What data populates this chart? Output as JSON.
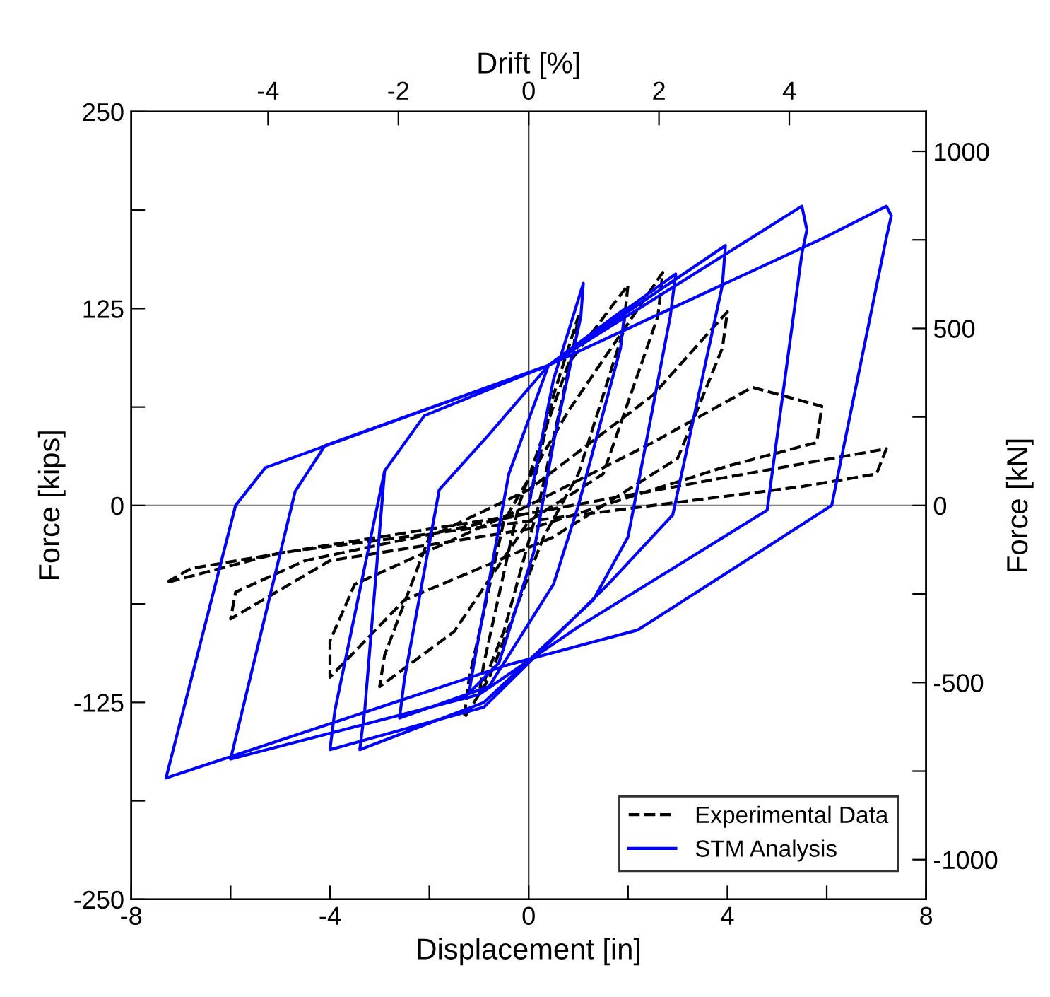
{
  "chart_data": {
    "type": "line",
    "xlabel": "Displacement [in]",
    "ylabel": "Force [kips]",
    "y2label": "Force [kN]",
    "x2label": "Drift [%]",
    "xlim": [
      -8,
      8
    ],
    "xticks": [
      -8,
      {
        "value": -6,
        "label": null
      },
      -4,
      {
        "value": -2,
        "label": null
      },
      0,
      {
        "value": 2,
        "label": null
      },
      4,
      {
        "value": 6,
        "label": null
      },
      8
    ],
    "ylim": [
      -250,
      250
    ],
    "yticks": [
      -250,
      {
        "value": -187.5,
        "label": null
      },
      -125,
      {
        "value": -62.5,
        "label": null
      },
      0,
      {
        "value": 62.5,
        "label": null
      },
      125,
      {
        "value": 187.5,
        "label": null
      },
      250
    ],
    "y2lim": [
      -1112,
      1112
    ],
    "y2ticks": [
      -1000,
      {
        "value": -750,
        "label": null
      },
      -500,
      {
        "value": -250,
        "label": null
      },
      0,
      {
        "value": 250,
        "label": null
      },
      500,
      {
        "value": 750,
        "label": null
      },
      1000
    ],
    "x2lim": [
      -6.1,
      6.1
    ],
    "x2ticks": [
      -4,
      -2,
      0,
      2,
      4
    ],
    "grid": false,
    "legend": "bottom right",
    "ref_lines": [
      {
        "axis": "x",
        "value": 0,
        "label": null,
        "color": "#333333"
      },
      {
        "axis": "y",
        "value": 0,
        "label": null,
        "color": "#808080"
      }
    ],
    "series": [
      {
        "name": "Experimental Data",
        "color": "#000000",
        "line_style": "dashed",
        "x": [
          0,
          0.5,
          1.0,
          0.9,
          0.2,
          -0.5,
          -1.0,
          -0.9,
          -0.2,
          0.8,
          2.0,
          1.9,
          1.0,
          0.3,
          -0.8,
          -1.3,
          -1.2,
          -0.5,
          0.8,
          2.7,
          2.6,
          1.5,
          0,
          -1.5,
          -3.0,
          -2.9,
          -2.0,
          0,
          2.5,
          4.0,
          3.9,
          3.0,
          0.5,
          -2.5,
          -4.0,
          -4.0,
          -3.5,
          0,
          2.5,
          4.5,
          5.9,
          5.8,
          4.0,
          0,
          -4,
          -6,
          -5.9,
          -4.5,
          0,
          4,
          7.2,
          7.0,
          5.5,
          0,
          -5,
          -7.3,
          -6.8,
          -4,
          0
        ],
        "values": [
          0,
          70,
          120,
          100,
          0,
          -80,
          -120,
          -100,
          0,
          90,
          140,
          110,
          20,
          -20,
          -110,
          -135,
          -110,
          -10,
          60,
          148,
          120,
          20,
          -10,
          -80,
          -115,
          -95,
          -20,
          10,
          70,
          123,
          100,
          30,
          -20,
          -60,
          -109,
          -86,
          -50,
          0,
          40,
          75,
          63,
          40,
          25,
          -15,
          -35,
          -72,
          -55,
          -35,
          -5,
          18,
          36,
          20,
          12,
          -10,
          -30,
          -49,
          -40,
          -25,
          -5
        ]
      },
      {
        "name": "STM Analysis",
        "color": "#0000ff",
        "line_style": "solid",
        "x": [
          0,
          0.5,
          1.1,
          1.05,
          0.5,
          0.1,
          -0.6,
          -1.2,
          -1.1,
          -0.4,
          0.4,
          1.94,
          1.85,
          1.0,
          0.5,
          -0.8,
          -2.6,
          -2.5,
          -1.8,
          -0.8,
          0.4,
          2.96,
          2.85,
          2.0,
          1.3,
          -0.9,
          -3.4,
          -3.3,
          -2.9,
          -2.1,
          0.4,
          3.96,
          3.9,
          2.9,
          1.6,
          -0.9,
          -4.0,
          -3.9,
          -2.9,
          -2.1,
          0.4,
          5.5,
          5.6,
          5.5,
          4.8,
          1.0,
          -1.0,
          -6.0,
          -4.7,
          -4.1,
          0.4,
          5.95,
          7.2,
          7.3,
          7.2,
          6.1,
          2.2,
          -0.4,
          -7.3,
          -5.9,
          -5.3,
          0.4
        ],
        "values": [
          0,
          80,
          141,
          120,
          40,
          -30,
          -100,
          -119,
          -100,
          20,
          89,
          125,
          100,
          0,
          -50,
          -115,
          -135,
          -110,
          10,
          45,
          89,
          147,
          120,
          -20,
          -60,
          -125,
          -155,
          -130,
          22,
          57,
          89,
          165,
          140,
          -6,
          -50,
          -128,
          -155,
          -130,
          22,
          57,
          89,
          190,
          175,
          160,
          -3,
          -77,
          -120,
          -161,
          9,
          38,
          89,
          170,
          190,
          184,
          170,
          0,
          -79,
          -101,
          -173,
          0,
          24,
          89
        ]
      }
    ]
  }
}
